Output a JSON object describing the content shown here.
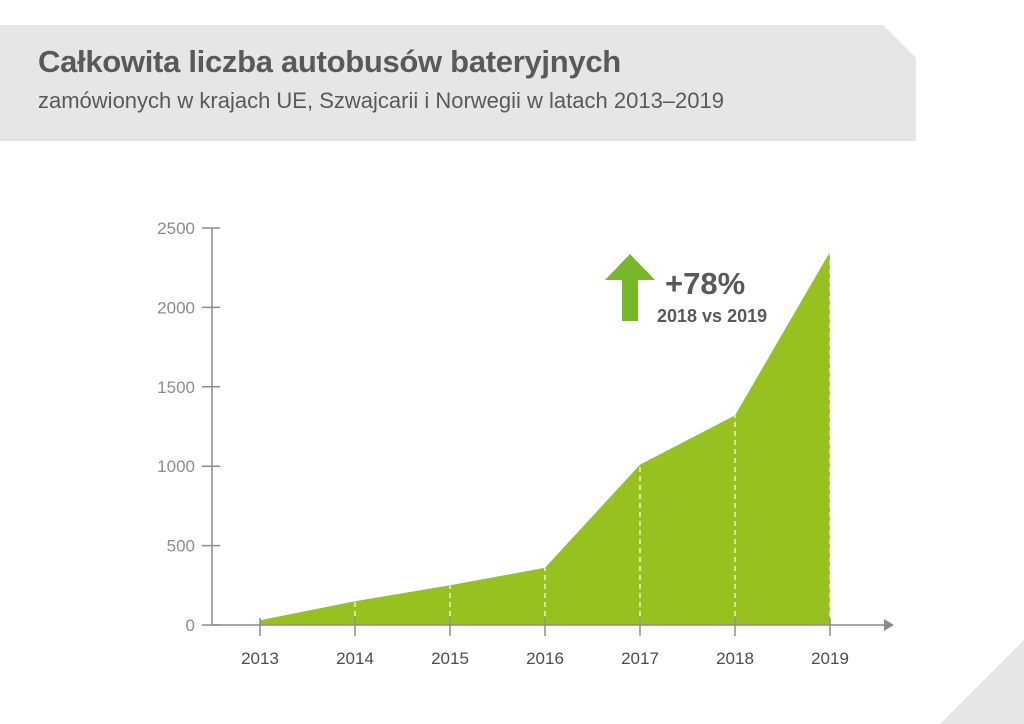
{
  "header": {
    "title": "Całkowita liczba autobusów bateryjnych",
    "subtitle": "zamówionych w krajach UE, Szwajcarii i Norwegii w latach 2013–2019"
  },
  "callout": {
    "icon": "up-arrow-icon",
    "percent": "+78%",
    "comparison": "2018 vs 2019",
    "color": "#77b82a"
  },
  "chart_data": {
    "type": "area",
    "title": "Całkowita liczba autobusów bateryjnych",
    "subtitle": "zamówionych w krajach UE, Szwajcarii i Norwegii w latach 2013–2019",
    "xlabel": "",
    "ylabel": "",
    "categories": [
      "2013",
      "2014",
      "2015",
      "2016",
      "2017",
      "2018",
      "2019"
    ],
    "values": [
      30,
      150,
      250,
      360,
      1010,
      1320,
      2350
    ],
    "ylim": [
      0,
      2500
    ],
    "yticks": [
      0,
      500,
      1000,
      1500,
      2000,
      2500
    ],
    "grid": false,
    "fill_color": "#96c11f",
    "axis_color": "#8c8c8c",
    "annotations": [
      "+78%",
      "2018 vs 2019"
    ]
  }
}
